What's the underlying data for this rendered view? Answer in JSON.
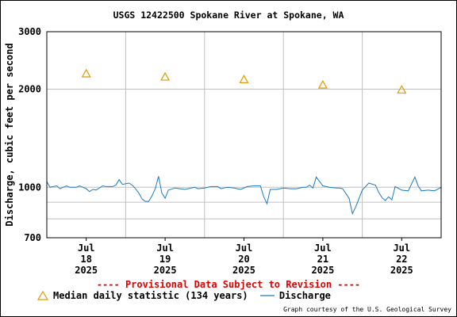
{
  "title": "USGS 12422500 Spokane River at Spokane, WA",
  "provisional_notice": "---- Provisional Data Subject to Revision ----",
  "credit": "Graph courtesy of the U.S. Geological Survey",
  "colors": {
    "discharge": "#1a7bc0",
    "median": "#e09a00",
    "notice": "#dd0000",
    "grid": "#c0c0c0"
  },
  "legend": [
    {
      "key": "median",
      "label": "Median daily statistic (134 years)",
      "symbol": "triangle",
      "color": "#e09a00"
    },
    {
      "key": "discharge",
      "label": "Discharge",
      "symbol": "line",
      "color": "#1a7bc0"
    }
  ],
  "chart_data": {
    "type": "line",
    "title": "USGS 12422500 Spokane River at Spokane, WA",
    "xlabel": "",
    "ylabel": "Discharge, cubic feet per second",
    "y_scale": "log",
    "ylim": [
      700,
      3000
    ],
    "y_ticks": [
      700,
      1000,
      2000,
      3000
    ],
    "y_minor_grid": [
      800,
      900
    ],
    "xlim": [
      "2025-07-17 12:00",
      "2025-07-22 12:00"
    ],
    "x_ticks": [
      {
        "at": "2025-07-18 00:00",
        "month": "Jul",
        "day": "18",
        "year": "2025"
      },
      {
        "at": "2025-07-19 00:00",
        "month": "Jul",
        "day": "19",
        "year": "2025"
      },
      {
        "at": "2025-07-20 00:00",
        "month": "Jul",
        "day": "20",
        "year": "2025"
      },
      {
        "at": "2025-07-21 00:00",
        "month": "Jul",
        "day": "21",
        "year": "2025"
      },
      {
        "at": "2025-07-22 00:00",
        "month": "Jul",
        "day": "22",
        "year": "2025"
      }
    ],
    "x_day_boundaries": [
      "2025-07-18 12:00",
      "2025-07-19 12:00",
      "2025-07-20 12:00",
      "2025-07-21 12:00"
    ],
    "grid": true,
    "legend_position": "bottom",
    "series": [
      {
        "name": "Median daily statistic (134 years)",
        "marker": "triangle",
        "x": [
          "2025-07-18 00:00",
          "2025-07-19 00:00",
          "2025-07-20 00:00",
          "2025-07-21 00:00",
          "2025-07-22 00:00"
        ],
        "y": [
          2230,
          2180,
          2140,
          2060,
          1990
        ]
      },
      {
        "name": "Discharge",
        "marker": "line",
        "x": [
          "2025-07-17 12:00",
          "2025-07-17 13:00",
          "2025-07-17 15:00",
          "2025-07-17 16:00",
          "2025-07-17 18:00",
          "2025-07-17 19:00",
          "2025-07-17 21:00",
          "2025-07-17 22:00",
          "2025-07-17 23:00",
          "2025-07-18 00:00",
          "2025-07-18 01:00",
          "2025-07-18 02:00",
          "2025-07-18 03:00",
          "2025-07-18 05:00",
          "2025-07-18 06:00",
          "2025-07-18 08:00",
          "2025-07-18 09:00",
          "2025-07-18 10:00",
          "2025-07-18 11:00",
          "2025-07-18 13:00",
          "2025-07-18 14:00",
          "2025-07-18 15:00",
          "2025-07-18 16:00",
          "2025-07-18 17:00",
          "2025-07-18 18:00",
          "2025-07-18 19:00",
          "2025-07-18 20:00",
          "2025-07-18 21:00",
          "2025-07-18 22:00",
          "2025-07-18 23:00",
          "2025-07-19 00:00",
          "2025-07-19 01:00",
          "2025-07-19 03:00",
          "2025-07-19 06:00",
          "2025-07-19 09:00",
          "2025-07-19 10:00",
          "2025-07-19 12:00",
          "2025-07-19 14:00",
          "2025-07-19 16:00",
          "2025-07-19 17:00",
          "2025-07-19 19:00",
          "2025-07-19 21:00",
          "2025-07-19 23:00",
          "2025-07-20 01:00",
          "2025-07-20 03:00",
          "2025-07-20 05:00",
          "2025-07-20 06:00",
          "2025-07-20 07:00",
          "2025-07-20 08:00",
          "2025-07-20 10:00",
          "2025-07-20 12:00",
          "2025-07-20 14:00",
          "2025-07-20 16:00",
          "2025-07-20 18:00",
          "2025-07-20 19:00",
          "2025-07-20 20:00",
          "2025-07-20 21:00",
          "2025-07-20 22:00",
          "2025-07-21 00:00",
          "2025-07-21 01:00",
          "2025-07-21 02:00",
          "2025-07-21 04:00",
          "2025-07-21 05:00",
          "2025-07-21 06:00",
          "2025-07-21 08:00",
          "2025-07-21 09:00",
          "2025-07-21 10:00",
          "2025-07-21 12:00",
          "2025-07-21 14:00",
          "2025-07-21 16:00",
          "2025-07-21 17:00",
          "2025-07-21 18:00",
          "2025-07-21 19:00",
          "2025-07-21 20:00",
          "2025-07-21 21:00",
          "2025-07-21 22:00",
          "2025-07-22 00:00",
          "2025-07-22 02:00",
          "2025-07-22 04:00",
          "2025-07-22 05:00",
          "2025-07-22 06:00",
          "2025-07-22 08:00",
          "2025-07-22 10:00",
          "2025-07-22 12:00"
        ],
        "y": [
          1040,
          1000,
          1010,
          990,
          1010,
          1000,
          1000,
          1010,
          1000,
          990,
          970,
          985,
          980,
          1010,
          1005,
          1005,
          1015,
          1055,
          1020,
          1030,
          1015,
          990,
          960,
          920,
          905,
          905,
          940,
          990,
          1080,
          960,
          925,
          980,
          995,
          985,
          1000,
          990,
          995,
          1005,
          1005,
          990,
          1000,
          995,
          985,
          1005,
          1010,
          1010,
          935,
          890,
          985,
          985,
          995,
          990,
          990,
          1000,
          1000,
          1015,
          995,
          1075,
          1010,
          1005,
          1000,
          995,
          995,
          990,
          925,
          830,
          870,
          980,
          1030,
          1015,
          965,
          930,
          910,
          935,
          915,
          1005,
          980,
          975,
          1075,
          1010,
          975,
          980,
          975,
          1000
        ]
      }
    ]
  }
}
